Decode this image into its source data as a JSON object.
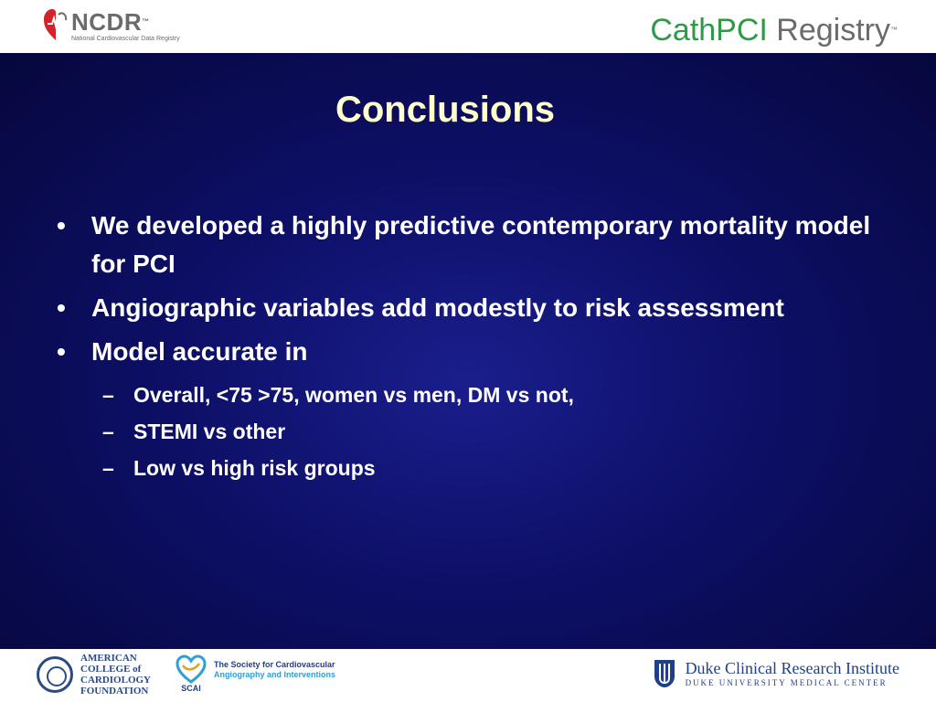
{
  "header": {
    "ncdr_logo": {
      "name": "NCDR",
      "tm": "™",
      "subtitle": "National Cardiovascular Data Registry"
    },
    "cathpci_logo": {
      "part1": "CathPCI",
      "part2": " Registry",
      "tm": "™"
    }
  },
  "slide": {
    "title": "Conclusions",
    "bullets": [
      {
        "marker": "•",
        "text": "We developed a highly predictive contemporary mortality model for PCI"
      },
      {
        "marker": "•",
        "text": "Angiographic variables add modestly to risk assessment"
      },
      {
        "marker": "•",
        "text": "Model accurate in"
      }
    ],
    "sub_bullets": [
      {
        "marker": "–",
        "text": "Overall, <75 >75, women vs men, DM vs not,"
      },
      {
        "marker": "–",
        "text": "STEMI vs other"
      },
      {
        "marker": "–",
        "text": "Low vs high risk groups"
      }
    ]
  },
  "footer": {
    "acc_logo": {
      "lines": [
        "AMERICAN",
        "COLLEGE of",
        "CARDIOLOGY",
        "FOUNDATION"
      ]
    },
    "scai_logo": {
      "abbr": "SCAI",
      "line1": "The Society for Cardiovascular",
      "line2": "Angiography and Interventions"
    },
    "duke_logo": {
      "main": "Duke Clinical Research Institute",
      "sub": "DUKE UNIVERSITY MEDICAL CENTER"
    }
  },
  "colors": {
    "background": "#0d0f66",
    "title": "#ffffcc",
    "body_text": "#ffffff",
    "cathpci_green": "#2e9a47",
    "logo_gray": "#6b6b6b",
    "logo_red": "#d2232a",
    "logo_blue": "#1f3f8a"
  }
}
